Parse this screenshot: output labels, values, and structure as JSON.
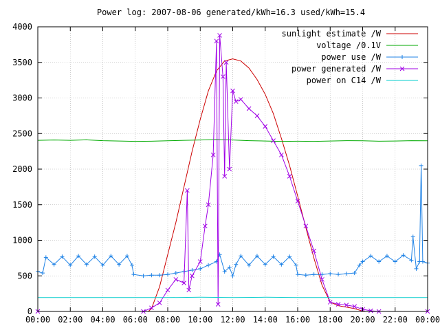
{
  "chart_data": {
    "type": "line",
    "title": "Power log: 2007-08-06 generated/kWh=16.3 used/kWh=15.4",
    "xlabel": "",
    "ylabel": "",
    "xlim": [
      0,
      24
    ],
    "ylim": [
      0,
      4000
    ],
    "grid": true,
    "legend_position": "top-right",
    "xticks": [
      {
        "value": 0,
        "label": "00:00"
      },
      {
        "value": 2,
        "label": "02:00"
      },
      {
        "value": 4,
        "label": "04:00"
      },
      {
        "value": 6,
        "label": "06:00"
      },
      {
        "value": 8,
        "label": "08:00"
      },
      {
        "value": 10,
        "label": "10:00"
      },
      {
        "value": 12,
        "label": "12:00"
      },
      {
        "value": 14,
        "label": "14:00"
      },
      {
        "value": 16,
        "label": "16:00"
      },
      {
        "value": 18,
        "label": "18:00"
      },
      {
        "value": 20,
        "label": "20:00"
      },
      {
        "value": 22,
        "label": "22:00"
      },
      {
        "value": 24,
        "label": "00:00"
      }
    ],
    "yticks": [
      {
        "value": 0,
        "label": "0"
      },
      {
        "value": 500,
        "label": "500"
      },
      {
        "value": 1000,
        "label": "1000"
      },
      {
        "value": 1500,
        "label": "1500"
      },
      {
        "value": 2000,
        "label": "2000"
      },
      {
        "value": 2500,
        "label": "2500"
      },
      {
        "value": 3000,
        "label": "3000"
      },
      {
        "value": 3500,
        "label": "3500"
      },
      {
        "value": 4000,
        "label": "4000"
      }
    ],
    "series": [
      {
        "name": "sunlight estimate /W",
        "color": "#cc0000",
        "marker": "none",
        "points": [
          [
            0,
            0
          ],
          [
            6.8,
            0
          ],
          [
            7.0,
            40
          ],
          [
            7.5,
            350
          ],
          [
            8,
            800
          ],
          [
            8.5,
            1250
          ],
          [
            9,
            1750
          ],
          [
            9.5,
            2250
          ],
          [
            10,
            2700
          ],
          [
            10.5,
            3100
          ],
          [
            11,
            3380
          ],
          [
            11.5,
            3520
          ],
          [
            12,
            3550
          ],
          [
            12.5,
            3520
          ],
          [
            13,
            3420
          ],
          [
            13.5,
            3260
          ],
          [
            14,
            3050
          ],
          [
            14.5,
            2780
          ],
          [
            15,
            2430
          ],
          [
            15.5,
            2050
          ],
          [
            16,
            1620
          ],
          [
            16.5,
            1180
          ],
          [
            17,
            750
          ],
          [
            17.5,
            370
          ],
          [
            18,
            130
          ],
          [
            18.5,
            80
          ],
          [
            19,
            60
          ],
          [
            19.5,
            40
          ],
          [
            20,
            5
          ],
          [
            20.2,
            0
          ],
          [
            24,
            0
          ]
        ]
      },
      {
        "name": "voltage /0.1V",
        "color": "#00aa00",
        "marker": "none",
        "points": [
          [
            0,
            2405
          ],
          [
            1,
            2410
          ],
          [
            2,
            2405
          ],
          [
            3,
            2412
          ],
          [
            4,
            2400
          ],
          [
            5,
            2395
          ],
          [
            6,
            2390
          ],
          [
            7,
            2392
          ],
          [
            8,
            2398
          ],
          [
            9,
            2405
          ],
          [
            10,
            2410
          ],
          [
            11,
            2415
          ],
          [
            12,
            2410
          ],
          [
            13,
            2400
          ],
          [
            14,
            2395
          ],
          [
            15,
            2390
          ],
          [
            16,
            2392
          ],
          [
            17,
            2390
          ],
          [
            18,
            2395
          ],
          [
            19,
            2400
          ],
          [
            20,
            2398
          ],
          [
            21,
            2392
          ],
          [
            22,
            2395
          ],
          [
            23,
            2400
          ],
          [
            24,
            2398
          ]
        ]
      },
      {
        "name": "power use /W",
        "color": "#1e82e6",
        "marker": "plus",
        "points": [
          [
            0,
            560
          ],
          [
            0.3,
            540
          ],
          [
            0.5,
            760
          ],
          [
            1,
            660
          ],
          [
            1.5,
            770
          ],
          [
            2,
            650
          ],
          [
            2.5,
            780
          ],
          [
            3,
            660
          ],
          [
            3.5,
            770
          ],
          [
            4,
            650
          ],
          [
            4.5,
            780
          ],
          [
            5,
            660
          ],
          [
            5.5,
            780
          ],
          [
            5.8,
            650
          ],
          [
            5.9,
            520
          ],
          [
            6.5,
            500
          ],
          [
            7,
            510
          ],
          [
            7.5,
            510
          ],
          [
            8,
            520
          ],
          [
            8.5,
            540
          ],
          [
            9,
            560
          ],
          [
            9.5,
            580
          ],
          [
            10,
            600
          ],
          [
            10.5,
            650
          ],
          [
            11,
            700
          ],
          [
            11.2,
            800
          ],
          [
            11.5,
            560
          ],
          [
            11.8,
            620
          ],
          [
            12,
            500
          ],
          [
            12.2,
            660
          ],
          [
            12.5,
            780
          ],
          [
            13,
            650
          ],
          [
            13.5,
            780
          ],
          [
            14,
            660
          ],
          [
            14.5,
            770
          ],
          [
            15,
            660
          ],
          [
            15.5,
            770
          ],
          [
            15.9,
            650
          ],
          [
            16,
            520
          ],
          [
            16.5,
            510
          ],
          [
            17,
            520
          ],
          [
            17.5,
            520
          ],
          [
            18,
            530
          ],
          [
            18.5,
            520
          ],
          [
            19,
            530
          ],
          [
            19.5,
            540
          ],
          [
            19.8,
            650
          ],
          [
            20,
            700
          ],
          [
            20.5,
            780
          ],
          [
            21,
            700
          ],
          [
            21.5,
            780
          ],
          [
            22,
            700
          ],
          [
            22.5,
            790
          ],
          [
            23,
            720
          ],
          [
            23.1,
            1050
          ],
          [
            23.3,
            600
          ],
          [
            23.5,
            700
          ],
          [
            23.6,
            2050
          ],
          [
            23.7,
            700
          ],
          [
            24,
            680
          ]
        ]
      },
      {
        "name": "power generated /W",
        "color": "#a000e6",
        "marker": "cross",
        "points": [
          [
            0,
            0
          ],
          [
            6.5,
            0
          ],
          [
            7,
            50
          ],
          [
            7.5,
            120
          ],
          [
            8,
            300
          ],
          [
            8.5,
            450
          ],
          [
            9,
            400
          ],
          [
            9.2,
            1700
          ],
          [
            9.3,
            300
          ],
          [
            9.5,
            500
          ],
          [
            10,
            700
          ],
          [
            10.3,
            1200
          ],
          [
            10.5,
            1500
          ],
          [
            10.8,
            2200
          ],
          [
            11,
            3800
          ],
          [
            11.1,
            100
          ],
          [
            11.2,
            3880
          ],
          [
            11.4,
            3300
          ],
          [
            11.5,
            1900
          ],
          [
            11.6,
            3500
          ],
          [
            11.8,
            2000
          ],
          [
            12,
            3100
          ],
          [
            12.2,
            2950
          ],
          [
            12.5,
            2980
          ],
          [
            13,
            2850
          ],
          [
            13.5,
            2750
          ],
          [
            14,
            2600
          ],
          [
            14.5,
            2400
          ],
          [
            15,
            2200
          ],
          [
            15.5,
            1900
          ],
          [
            16,
            1550
          ],
          [
            16.5,
            1200
          ],
          [
            17,
            850
          ],
          [
            17.5,
            450
          ],
          [
            18,
            130
          ],
          [
            18.5,
            100
          ],
          [
            19,
            90
          ],
          [
            19.5,
            70
          ],
          [
            20,
            30
          ],
          [
            20.5,
            10
          ],
          [
            21,
            0
          ],
          [
            24,
            0
          ]
        ]
      },
      {
        "name": "power on C14 /W",
        "color": "#00cccc",
        "marker": "none",
        "points": [
          [
            0,
            195
          ],
          [
            4,
            195
          ],
          [
            8,
            195
          ],
          [
            10,
            200
          ],
          [
            12,
            195
          ],
          [
            14,
            200
          ],
          [
            16,
            195
          ],
          [
            18,
            195
          ],
          [
            20,
            195
          ],
          [
            22,
            195
          ],
          [
            24,
            195
          ]
        ]
      }
    ]
  }
}
